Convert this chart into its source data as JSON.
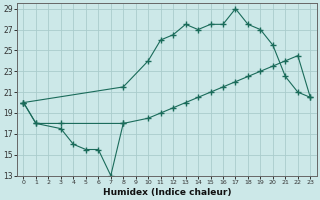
{
  "xlabel": "Humidex (Indice chaleur)",
  "bg_color": "#cce8e8",
  "grid_color": "#aacccc",
  "line_color": "#1a6b5a",
  "xlim": [
    -0.5,
    23.5
  ],
  "ylim": [
    13,
    29.5
  ],
  "yticks": [
    13,
    15,
    17,
    19,
    21,
    23,
    25,
    27,
    29
  ],
  "xticks": [
    0,
    1,
    2,
    3,
    4,
    5,
    6,
    7,
    8,
    9,
    10,
    11,
    12,
    13,
    14,
    15,
    16,
    17,
    18,
    19,
    20,
    21,
    22,
    23
  ],
  "line1_x": [
    0,
    1,
    3,
    4,
    5,
    6,
    7,
    8
  ],
  "line1_y": [
    20.0,
    18.0,
    17.5,
    16.0,
    15.5,
    15.5,
    13.0,
    18.0
  ],
  "line2_x": [
    0,
    1,
    3,
    8,
    10,
    11,
    12,
    13,
    14,
    15,
    16,
    17,
    18,
    19,
    20,
    21,
    22,
    23
  ],
  "line2_y": [
    20.0,
    18.0,
    18.0,
    18.0,
    18.5,
    19.0,
    19.5,
    20.0,
    20.5,
    21.0,
    21.5,
    22.0,
    22.5,
    23.0,
    23.5,
    24.0,
    24.5,
    20.5
  ],
  "line3_x": [
    0,
    8,
    10,
    11,
    12,
    13,
    14,
    15,
    16,
    17,
    18,
    19,
    20,
    21,
    22,
    23
  ],
  "line3_y": [
    20.0,
    21.5,
    24.0,
    26.0,
    26.5,
    27.5,
    27.0,
    27.5,
    27.5,
    29.0,
    27.5,
    27.0,
    25.5,
    22.5,
    21.0,
    20.5
  ]
}
